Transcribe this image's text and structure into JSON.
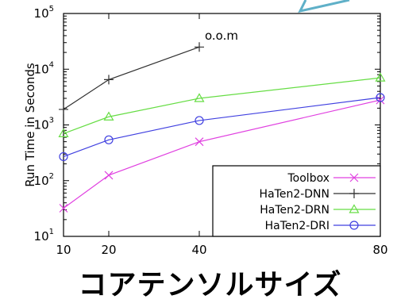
{
  "chart_data": {
    "type": "line",
    "ylabel": "Run Time in Seconds",
    "xlabel": "コアテンソルサイズ",
    "x": [
      10,
      20,
      40,
      80
    ],
    "xticks": [
      "10",
      "20",
      "40",
      "80"
    ],
    "yscale": "log",
    "ylim": [
      10,
      100000
    ],
    "yticks": [
      {
        "value": 10,
        "base": "10",
        "exp": "1"
      },
      {
        "value": 100,
        "base": "10",
        "exp": "2"
      },
      {
        "value": 1000,
        "base": "10",
        "exp": "3"
      },
      {
        "value": 10000,
        "base": "10",
        "exp": "4"
      },
      {
        "value": 100000,
        "base": "10",
        "exp": "5"
      }
    ],
    "grid": false,
    "legend_position": "bottom-right",
    "series": [
      {
        "name": "Toolbox",
        "color": "#e040e0",
        "marker": "x",
        "x": [
          10,
          20,
          40,
          80
        ],
        "values": [
          32,
          125,
          500,
          2800
        ]
      },
      {
        "name": "HaTen2-DNN",
        "color": "#303030",
        "marker": "plus",
        "x": [
          10,
          20,
          40
        ],
        "values": [
          1900,
          6500,
          25000
        ]
      },
      {
        "name": "HaTen2-DRN",
        "color": "#66dd44",
        "marker": "triangle",
        "x": [
          10,
          20,
          40,
          80
        ],
        "values": [
          700,
          1400,
          3000,
          7000
        ]
      },
      {
        "name": "HaTen2-DRI",
        "color": "#4040e0",
        "marker": "circle",
        "x": [
          10,
          20,
          40,
          80
        ],
        "values": [
          270,
          540,
          1200,
          3100
        ]
      }
    ],
    "annotations": [
      {
        "text": "o.o.m",
        "x": 40,
        "y": 40000
      }
    ]
  }
}
